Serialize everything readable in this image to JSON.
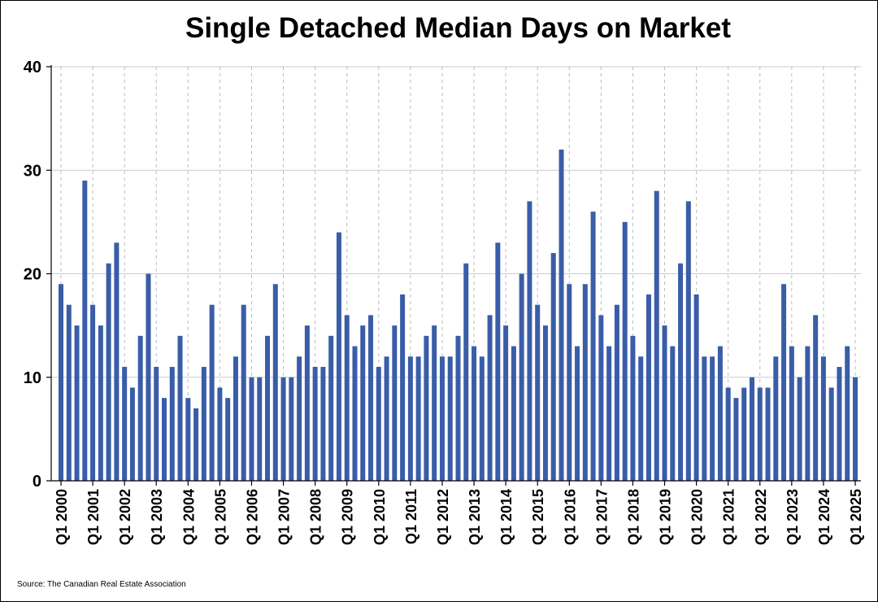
{
  "chart_data": {
    "type": "bar",
    "title": "Single Detached Median Days on Market",
    "source": "Source: The Canadian Real Estate Association",
    "xlabel": "",
    "ylabel": "",
    "ylim": [
      0,
      40
    ],
    "yticks": [
      0,
      10,
      20,
      30,
      40
    ],
    "grid": true,
    "bar_color": "#3A5DA8",
    "tick_labels": [
      "Q1 2000",
      "Q1 2001",
      "Q1 2002",
      "Q1 2003",
      "Q1 2004",
      "Q1 2005",
      "Q1 2006",
      "Q1 2007",
      "Q1 2008",
      "Q1 2009",
      "Q1 2010",
      "Q1 2011",
      "Q1 2012",
      "Q1 2013",
      "Q1 2014",
      "Q1 2015",
      "Q1 2016",
      "Q1 2017",
      "Q1 2018",
      "Q1 2019",
      "Q1 2020",
      "Q1 2021",
      "Q1 2022",
      "Q1 2023",
      "Q1 2024",
      "Q1 2025"
    ],
    "categories": [
      "Q1 2000",
      "Q2 2000",
      "Q3 2000",
      "Q4 2000",
      "Q1 2001",
      "Q2 2001",
      "Q3 2001",
      "Q4 2001",
      "Q1 2002",
      "Q2 2002",
      "Q3 2002",
      "Q4 2002",
      "Q1 2003",
      "Q2 2003",
      "Q3 2003",
      "Q4 2003",
      "Q1 2004",
      "Q2 2004",
      "Q3 2004",
      "Q4 2004",
      "Q1 2005",
      "Q2 2005",
      "Q3 2005",
      "Q4 2005",
      "Q1 2006",
      "Q2 2006",
      "Q3 2006",
      "Q4 2006",
      "Q1 2007",
      "Q2 2007",
      "Q3 2007",
      "Q4 2007",
      "Q1 2008",
      "Q2 2008",
      "Q3 2008",
      "Q4 2008",
      "Q1 2009",
      "Q2 2009",
      "Q3 2009",
      "Q4 2009",
      "Q1 2010",
      "Q2 2010",
      "Q3 2010",
      "Q4 2010",
      "Q1 2011",
      "Q2 2011",
      "Q3 2011",
      "Q4 2011",
      "Q1 2012",
      "Q2 2012",
      "Q3 2012",
      "Q4 2012",
      "Q1 2013",
      "Q2 2013",
      "Q3 2013",
      "Q4 2013",
      "Q1 2014",
      "Q2 2014",
      "Q3 2014",
      "Q4 2014",
      "Q1 2015",
      "Q2 2015",
      "Q3 2015",
      "Q4 2015",
      "Q1 2016",
      "Q2 2016",
      "Q3 2016",
      "Q4 2016",
      "Q1 2017",
      "Q2 2017",
      "Q3 2017",
      "Q4 2017",
      "Q1 2018",
      "Q2 2018",
      "Q3 2018",
      "Q4 2018",
      "Q1 2019",
      "Q2 2019",
      "Q3 2019",
      "Q4 2019",
      "Q1 2020",
      "Q2 2020",
      "Q3 2020",
      "Q4 2020",
      "Q1 2021",
      "Q2 2021",
      "Q3 2021",
      "Q4 2021",
      "Q1 2022",
      "Q2 2022",
      "Q3 2022",
      "Q4 2022",
      "Q1 2023",
      "Q2 2023",
      "Q3 2023",
      "Q4 2023",
      "Q1 2024",
      "Q2 2024",
      "Q3 2024",
      "Q4 2024",
      "Q1 2025"
    ],
    "values": [
      19,
      17,
      15,
      29,
      17,
      15,
      21,
      23,
      11,
      9,
      14,
      20,
      11,
      8,
      11,
      14,
      8,
      7,
      11,
      17,
      9,
      8,
      12,
      17,
      10,
      10,
      14,
      19,
      10,
      10,
      12,
      15,
      11,
      11,
      14,
      24,
      16,
      13,
      15,
      16,
      11,
      12,
      15,
      18,
      12,
      12,
      14,
      15,
      12,
      12,
      14,
      21,
      13,
      12,
      16,
      23,
      15,
      13,
      20,
      27,
      17,
      15,
      22,
      32,
      19,
      13,
      19,
      26,
      16,
      13,
      17,
      25,
      14,
      12,
      18,
      28,
      15,
      13,
      21,
      27,
      18,
      12,
      12,
      13,
      9,
      8,
      9,
      10,
      9,
      9,
      12,
      19,
      13,
      10,
      13,
      16,
      12,
      9,
      11,
      13,
      10
    ]
  }
}
